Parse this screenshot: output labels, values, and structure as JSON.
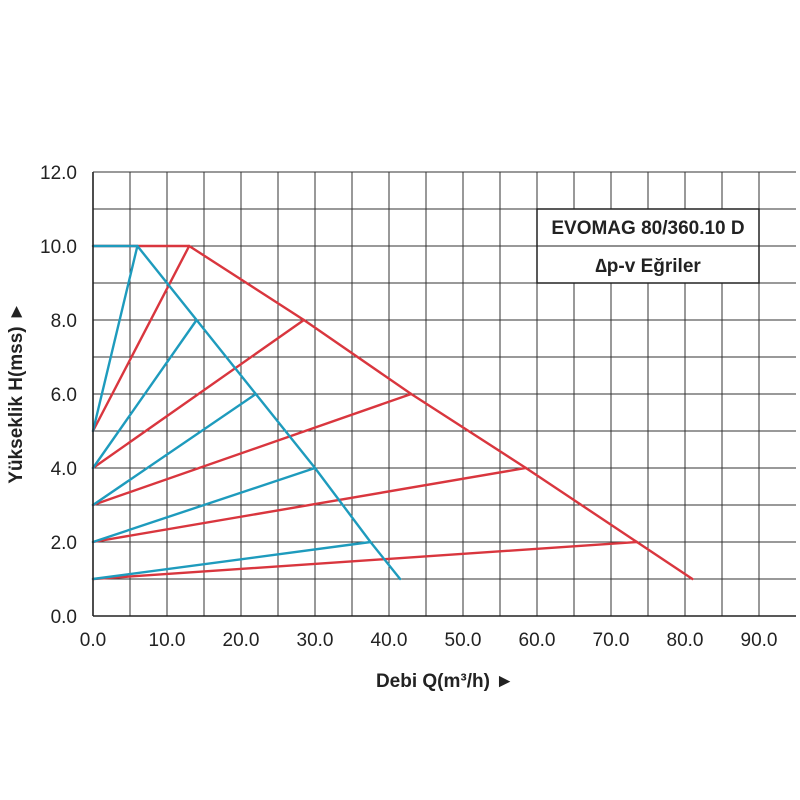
{
  "chart_data": {
    "type": "line",
    "title": "EVOMAG 80/360.10 D",
    "subtitle": "∆p-v Eğriler",
    "xlabel": "Debi Q(m³/h) ►",
    "ylabel": "Yükseklik H(mss) ►",
    "xlim": [
      0,
      95
    ],
    "ylim": [
      0,
      12
    ],
    "grid": true,
    "x_ticks": [
      "0.0",
      "10.0",
      "20.0",
      "30.0",
      "40.0",
      "50.0",
      "60.0",
      "70.0",
      "80.0",
      "90.0"
    ],
    "x_tick_values": [
      0,
      10,
      20,
      30,
      40,
      50,
      60,
      70,
      80,
      90
    ],
    "y_ticks": [
      "0.0",
      "2.0",
      "4.0",
      "6.0",
      "8.0",
      "10.0",
      "12.0"
    ],
    "y_tick_values": [
      0,
      2,
      4,
      6,
      8,
      10,
      12
    ],
    "colors": {
      "red": "#d9363e",
      "blue": "#1e9bbd"
    },
    "series": [
      {
        "color": "red",
        "points": [
          [
            0,
            10
          ],
          [
            13,
            10
          ],
          [
            28.5,
            8
          ],
          [
            43,
            6
          ],
          [
            58.5,
            4
          ],
          [
            73.5,
            2
          ],
          [
            81,
            1
          ]
        ]
      },
      {
        "color": "red",
        "points": [
          [
            0,
            5
          ],
          [
            13,
            10
          ]
        ]
      },
      {
        "color": "red",
        "points": [
          [
            0,
            4
          ],
          [
            28.5,
            8
          ]
        ]
      },
      {
        "color": "red",
        "points": [
          [
            0,
            3
          ],
          [
            43,
            6
          ]
        ]
      },
      {
        "color": "red",
        "points": [
          [
            0,
            2
          ],
          [
            58.5,
            4
          ]
        ]
      },
      {
        "color": "red",
        "points": [
          [
            0,
            1
          ],
          [
            73.5,
            2
          ]
        ]
      },
      {
        "color": "blue",
        "points": [
          [
            0,
            10
          ],
          [
            6,
            10
          ],
          [
            14,
            8
          ],
          [
            22,
            6
          ],
          [
            30,
            4
          ],
          [
            37.5,
            2
          ],
          [
            41.5,
            1
          ]
        ]
      },
      {
        "color": "blue",
        "points": [
          [
            0,
            5
          ],
          [
            6,
            10
          ]
        ]
      },
      {
        "color": "blue",
        "points": [
          [
            0,
            4
          ],
          [
            14,
            8
          ]
        ]
      },
      {
        "color": "blue",
        "points": [
          [
            0,
            3
          ],
          [
            22,
            6
          ]
        ]
      },
      {
        "color": "blue",
        "points": [
          [
            0,
            2
          ],
          [
            30,
            4
          ]
        ]
      },
      {
        "color": "blue",
        "points": [
          [
            0,
            1
          ],
          [
            37.5,
            2
          ]
        ]
      }
    ]
  }
}
